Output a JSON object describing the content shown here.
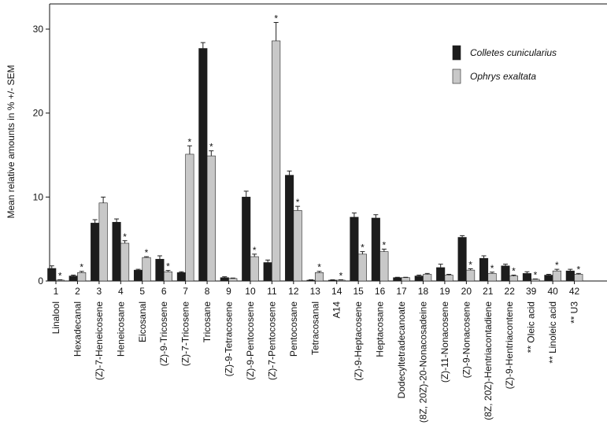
{
  "chart_data": {
    "type": "bar",
    "y_label": "Mean relative amounts in % +/- SEM",
    "categories": [
      "1",
      "2",
      "3",
      "4",
      "5",
      "6",
      "7",
      "8",
      "9",
      "10",
      "11",
      "12",
      "13",
      "14",
      "15",
      "16",
      "17",
      "18",
      "19",
      "20",
      "21",
      "22",
      "39",
      "40",
      "42"
    ],
    "names": [
      "Linalool",
      "Hexadecanal",
      "(Z)-7-Heneicosene",
      "Heneicosane",
      "Eicosanal",
      "(Z)-9-Tricosene",
      "(Z)-7-Tricosene",
      "Tricosane",
      "(Z)-9-Tetracosene",
      "(Z)-9-Pentocosene",
      "(Z)-7-Pentocosene",
      "Pentocosane",
      "Tetracosanal",
      "A14",
      "(Z)-9-Heptacosene",
      "Heptacosane",
      "Dodecyltetradecanoate",
      "(8Z, 20Z)-20-Nonacosadeine",
      "(Z)-11-Nonacosene",
      "(Z)-9-Nonacosene",
      "(8Z, 20Z)-Hentriacontadiene",
      "(Z)-9-Hentriacontene",
      "** Oleic acid",
      "** Linoleic acid",
      "** U3"
    ],
    "series": [
      {
        "name": "Colletes cunicularius",
        "color": "#1c1c1c",
        "values": [
          1.5,
          0.6,
          6.9,
          7.0,
          1.3,
          2.6,
          1.0,
          27.7,
          0.4,
          10.0,
          2.2,
          12.6,
          0.1,
          0.1,
          7.6,
          7.5,
          0.4,
          0.6,
          1.6,
          5.2,
          2.7,
          1.8,
          0.9,
          0.7,
          1.2
        ],
        "errors": [
          0.3,
          0.1,
          0.4,
          0.4,
          0.1,
          0.4,
          0.1,
          0.7,
          0.1,
          0.7,
          0.3,
          0.5,
          0.05,
          0.05,
          0.5,
          0.4,
          0.05,
          0.1,
          0.4,
          0.2,
          0.3,
          0.2,
          0.2,
          0.1,
          0.2
        ],
        "markers": [
          null,
          null,
          null,
          null,
          null,
          null,
          null,
          null,
          null,
          null,
          null,
          null,
          null,
          null,
          null,
          null,
          null,
          null,
          null,
          null,
          null,
          null,
          null,
          null,
          null
        ]
      },
      {
        "name": "Ophrys exaltata",
        "color": "#c8c8c8",
        "values": [
          0.1,
          1.0,
          9.3,
          4.5,
          2.8,
          1.1,
          15.1,
          14.9,
          0.3,
          2.9,
          28.6,
          8.4,
          1.0,
          0.1,
          3.2,
          3.5,
          0.4,
          0.8,
          0.7,
          1.3,
          0.9,
          0.6,
          0.2,
          1.2,
          0.8
        ],
        "errors": [
          0.05,
          0.15,
          0.7,
          0.3,
          0.1,
          0.15,
          1.0,
          0.6,
          0.05,
          0.3,
          2.2,
          0.5,
          0.15,
          0.05,
          0.3,
          0.3,
          0.05,
          0.1,
          0.1,
          0.15,
          0.15,
          0.1,
          0.05,
          0.2,
          0.1
        ],
        "markers": [
          "*",
          "*",
          null,
          "*",
          "*",
          "*",
          "*",
          "*",
          null,
          "*",
          "*",
          "*",
          "*",
          "*",
          "*",
          "*",
          null,
          null,
          null,
          "*",
          "*",
          "*",
          "*",
          "*",
          "*"
        ]
      }
    ],
    "ylim": [
      0,
      33
    ],
    "yticks": [
      0,
      10,
      20,
      30
    ],
    "legend": "top-right"
  }
}
